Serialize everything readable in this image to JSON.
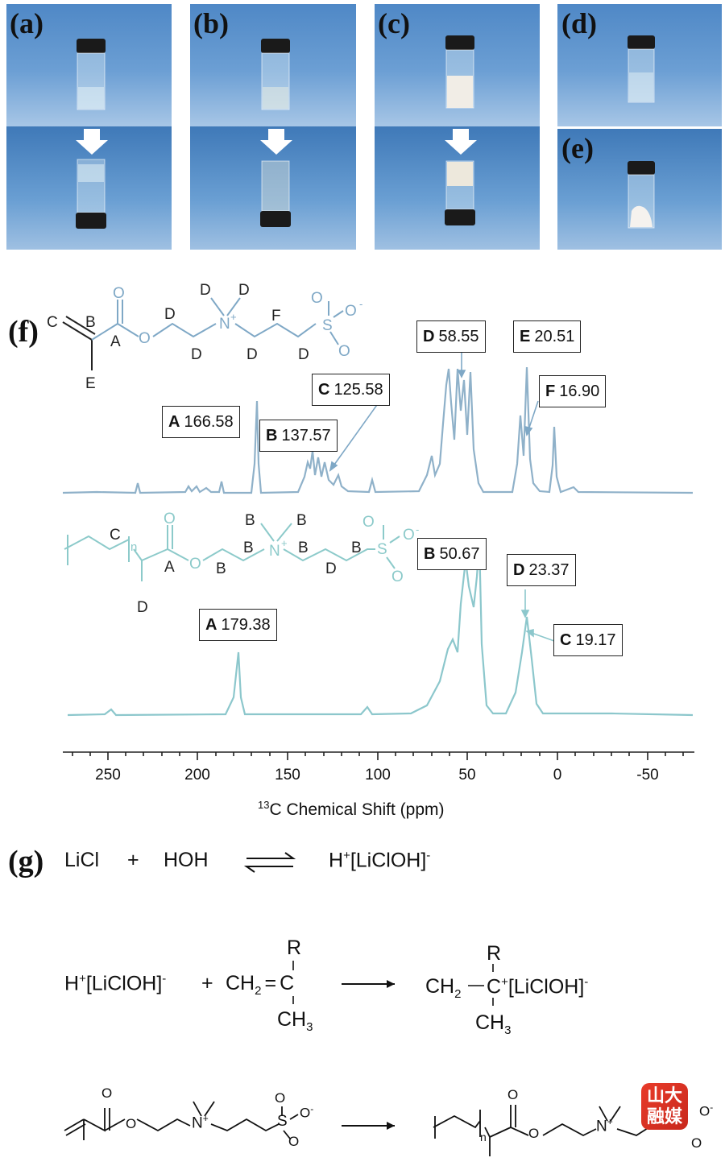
{
  "panels": {
    "a": "(a)",
    "b": "(b)",
    "c": "(c)",
    "d": "(d)",
    "e": "(e)",
    "f": "(f)",
    "g": "(g)"
  },
  "monomer_labels": {
    "C": "C",
    "B": "B",
    "A": "A",
    "O_ester": "O",
    "O_carbonyl": "O",
    "D1": "D",
    "D2": "D",
    "D3": "D",
    "D4": "D",
    "D5": "D",
    "D6": "D",
    "N": "N",
    "Nplus": "+",
    "F": "F",
    "S": "S",
    "SO_top": "O",
    "SO_right": "O",
    "SO_bottom": "O",
    "Sminus": "-",
    "E": "E"
  },
  "polymer_labels": {
    "C": "C",
    "n": "n",
    "A": "A",
    "O_ester": "O",
    "O_carbonyl": "O",
    "B1": "B",
    "B2": "B",
    "B3": "B",
    "B4": "B",
    "B5": "B",
    "B6": "B",
    "N": "N",
    "Nplus": "+",
    "S": "S",
    "SO_top": "O",
    "SO_right": "O",
    "SO_bottom": "O",
    "Sminus": "-",
    "D1": "D",
    "D2": "D"
  },
  "peaks_top": [
    {
      "key": "A",
      "value": "166.58"
    },
    {
      "key": "B",
      "value": "137.57"
    },
    {
      "key": "C",
      "value": "125.58"
    },
    {
      "key": "D",
      "value": "58.55"
    },
    {
      "key": "E",
      "value": "20.51"
    },
    {
      "key": "F",
      "value": "16.90"
    }
  ],
  "peaks_bottom": [
    {
      "key": "A",
      "value": "179.38"
    },
    {
      "key": "B",
      "value": "50.67"
    },
    {
      "key": "D",
      "value": "23.37"
    },
    {
      "key": "C",
      "value": "19.17"
    }
  ],
  "axis": {
    "ticks": [
      "250",
      "200",
      "150",
      "100",
      "50",
      "0",
      "-50"
    ],
    "label_super": "13",
    "label": "C Chemical Shift (ppm)"
  },
  "equations": {
    "eq1_a": "LiCl",
    "eq1_plus": "+",
    "eq1_b": "HOH",
    "eq1_c_pre": "H",
    "eq1_c_sup": "+",
    "eq1_c_mid": "[LiClOH]",
    "eq1_c_sup2": "-",
    "eq2_a_pre": "H",
    "eq2_a_sup": "+",
    "eq2_a_mid": "[LiClOH]",
    "eq2_a_sup2": "-",
    "eq2_plus": "+",
    "eq2_ch2": "CH",
    "eq2_sub2": "2",
    "eq2_eq": "=",
    "eq2_C": "C",
    "eq2_R": "R",
    "eq2_ch3": "CH",
    "eq2_sub3": "3",
    "eq2_p_ch2": "CH",
    "eq2_p_sub2": "2",
    "eq2_p_C": "C",
    "eq2_p_plus": "+",
    "eq2_p_mid": "[LiClOH]",
    "eq2_p_sup": "-",
    "eq2_p_R": "R",
    "eq2_p_ch3": "CH",
    "eq2_p_sub3": "3",
    "eq3_O1": "O",
    "eq3_O2": "O",
    "eq3_N": "N",
    "eq3_Nplus": "+",
    "eq3_S": "S",
    "eq3_SO1": "O",
    "eq3_SO2": "O",
    "eq3_SO3": "O",
    "eq3_Sminus": "-",
    "eq3p_n": "n",
    "eq3p_O1": "O",
    "eq3p_O2": "O",
    "eq3p_N": "N",
    "eq3p_Nplus": "+",
    "eq3p_O3": "O",
    "eq3p_O4": "O",
    "eq3p_minus": "-"
  },
  "badge": {
    "line1": "山大",
    "line2": "融媒"
  },
  "colors": {
    "top_spectrum": "#8fb1c9",
    "bottom_spectrum": "#8cc7cc",
    "monomer": "#7fa8c6",
    "polymer": "#8ccaca"
  }
}
